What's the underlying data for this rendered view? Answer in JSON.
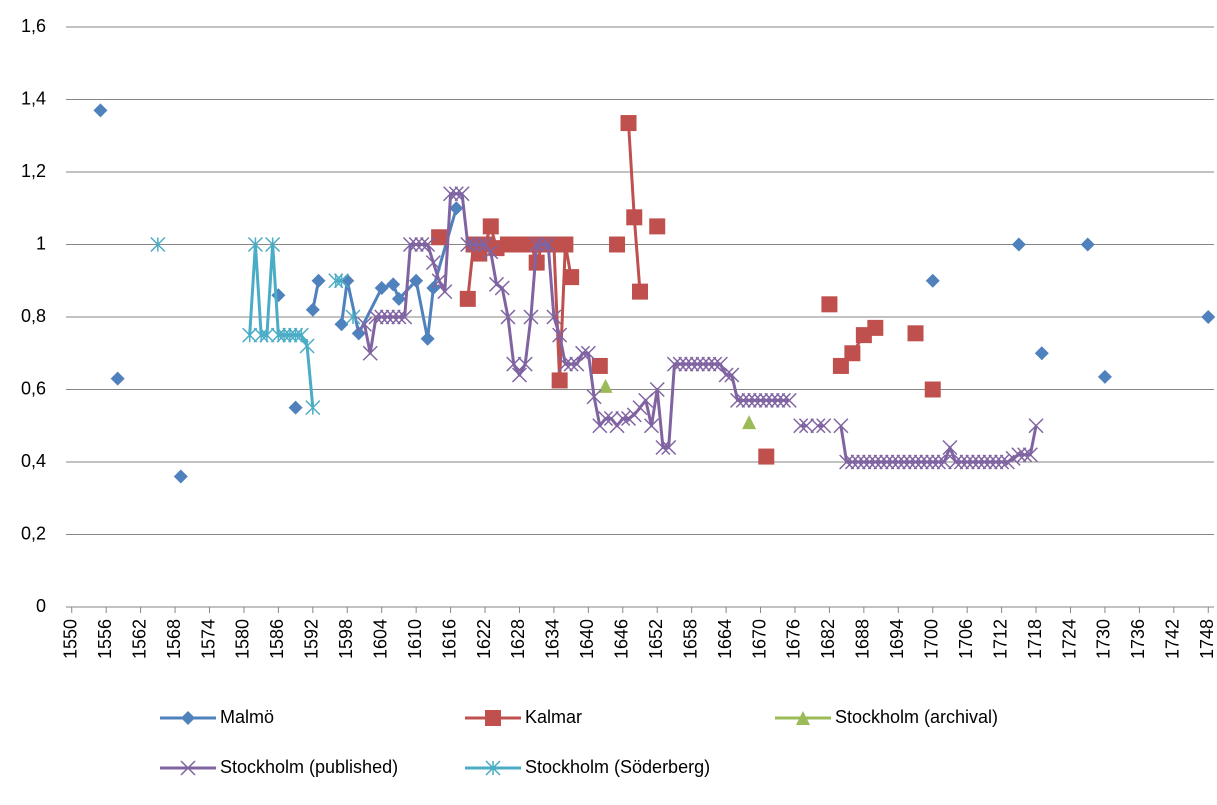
{
  "chart_data": {
    "type": "line",
    "xlim": [
      1549,
      1749
    ],
    "xticks": [
      1550,
      1556,
      1562,
      1568,
      1574,
      1580,
      1586,
      1592,
      1598,
      1604,
      1610,
      1616,
      1622,
      1628,
      1634,
      1640,
      1646,
      1652,
      1658,
      1664,
      1670,
      1676,
      1682,
      1688,
      1694,
      1700,
      1706,
      1712,
      1718,
      1724,
      1730,
      1736,
      1742,
      1748
    ],
    "ylim": [
      0,
      1.6
    ],
    "yticks": [
      0,
      {
        "value": 0.2,
        "label": "0,2"
      },
      {
        "value": 0.4,
        "label": "0,4"
      },
      {
        "value": 0.6,
        "label": "0,6"
      },
      {
        "value": 0.8,
        "label": "0,8"
      },
      1,
      {
        "value": 1.2,
        "label": "1,2"
      },
      {
        "value": 1.4,
        "label": "1,4"
      },
      {
        "value": 1.6,
        "label": "1,6"
      }
    ],
    "grid": true,
    "legend": "bottom",
    "series": [
      {
        "name": "Malmö",
        "color": "#4f81bd",
        "marker": "diamond",
        "x": [
          1555,
          1556,
          1558,
          1559,
          1569,
          1570,
          1586,
          1587,
          1589,
          1590,
          1592,
          1593,
          1594,
          1597,
          1598,
          1600,
          1604,
          1606,
          1607,
          1610,
          1612,
          1613,
          1617,
          1618,
          1700,
          1701,
          1715,
          1716,
          1719,
          1720,
          1727,
          1728,
          1730,
          1731,
          1748
        ],
        "values": [
          1.37,
          null,
          0.63,
          null,
          0.36,
          null,
          0.86,
          null,
          0.55,
          null,
          0.82,
          0.9,
          null,
          0.78,
          0.9,
          0.755,
          0.88,
          0.89,
          0.85,
          0.9,
          0.74,
          0.88,
          1.1,
          null,
          0.9,
          null,
          1.0,
          null,
          0.7,
          null,
          1.0,
          null,
          0.635,
          null,
          0.8
        ]
      },
      {
        "name": "Kalmar",
        "color": "#c0504d",
        "marker": "square",
        "x": [
          1614,
          1615,
          1619,
          1620,
          1621,
          1622,
          1623,
          1624,
          1626,
          1627,
          1629,
          1630,
          1631,
          1632,
          1633,
          1634,
          1635,
          1636,
          1637,
          1638,
          1642,
          1643,
          1645,
          1646,
          1647,
          1648,
          1649,
          1650,
          1652,
          1653,
          1671,
          1672,
          1682,
          1683,
          1684,
          1686,
          1688,
          1690,
          1691,
          1697,
          1698,
          1700
        ],
        "values": [
          1.02,
          null,
          0.85,
          1.0,
          0.975,
          1.0,
          1.05,
          0.99,
          1.0,
          1.0,
          1.0,
          1.0,
          0.95,
          1.0,
          1.0,
          1.0,
          0.625,
          1.0,
          0.91,
          null,
          0.665,
          null,
          1.0,
          null,
          1.335,
          1.075,
          0.87,
          null,
          1.05,
          null,
          0.415,
          null,
          0.835,
          null,
          0.665,
          0.7,
          0.75,
          0.77,
          null,
          0.755,
          null,
          0.6
        ]
      },
      {
        "name": "Stockholm (archival)",
        "color": "#9bbb59",
        "marker": "triangle",
        "x": [
          1643,
          1644,
          1668
        ],
        "values": [
          0.61,
          null,
          0.51
        ]
      },
      {
        "name": "Stockholm (published)",
        "color": "#8064a2",
        "marker": "x",
        "x": [
          1601,
          1602,
          1603,
          1604,
          1605,
          1606,
          1607,
          1608,
          1609,
          1610,
          1611,
          1612,
          1613,
          1614,
          1615,
          1616,
          1617,
          1618,
          1619,
          1620,
          1621,
          1622,
          1623,
          1624,
          1625,
          1626,
          1627,
          1628,
          1629,
          1630,
          1631,
          1632,
          1633,
          1634,
          1635,
          1636,
          1637,
          1638,
          1639,
          1640,
          1641,
          1642,
          1643,
          1644,
          1645,
          1646,
          1647,
          1648,
          1649,
          1650,
          1651,
          1652,
          1653,
          1654,
          1655,
          1656,
          1657,
          1658,
          1659,
          1660,
          1661,
          1662,
          1663,
          1664,
          1665,
          1666,
          1667,
          1668,
          1669,
          1670,
          1671,
          1672,
          1673,
          1674,
          1675,
          1676,
          1677,
          1678,
          1679,
          1680,
          1681,
          1682,
          1683,
          1684,
          1685,
          1686,
          1687,
          1688,
          1689,
          1690,
          1691,
          1692,
          1693,
          1694,
          1695,
          1696,
          1697,
          1698,
          1699,
          1700,
          1701,
          1702,
          1703,
          1704,
          1705,
          1706,
          1707,
          1708,
          1709,
          1710,
          1711,
          1712,
          1713,
          1714,
          1715,
          1716,
          1717,
          1718
        ],
        "values": [
          0.78,
          0.7,
          0.8,
          0.8,
          0.8,
          0.8,
          0.8,
          0.8,
          1.0,
          1.0,
          1.0,
          1.0,
          0.95,
          0.9,
          0.87,
          1.14,
          1.14,
          1.14,
          1.0,
          1.0,
          1.0,
          1.0,
          0.98,
          0.89,
          0.88,
          0.8,
          0.67,
          0.64,
          0.67,
          0.8,
          1.0,
          1.0,
          1.0,
          0.8,
          0.75,
          0.67,
          0.67,
          0.67,
          0.7,
          0.7,
          0.58,
          0.5,
          0.52,
          0.52,
          0.5,
          0.52,
          0.52,
          0.53,
          0.55,
          0.57,
          0.5,
          0.6,
          0.44,
          0.44,
          0.67,
          0.67,
          0.67,
          0.67,
          0.67,
          0.67,
          0.67,
          0.67,
          0.67,
          0.64,
          0.64,
          0.57,
          0.57,
          0.57,
          0.57,
          0.57,
          0.57,
          0.57,
          0.57,
          0.57,
          0.57,
          null,
          0.5,
          0.5,
          null,
          0.5,
          0.5,
          null,
          null,
          0.5,
          0.4,
          0.4,
          0.4,
          0.4,
          0.4,
          0.4,
          0.4,
          0.4,
          0.4,
          0.4,
          0.4,
          0.4,
          0.4,
          0.4,
          0.4,
          0.4,
          0.4,
          0.4,
          0.44,
          0.4,
          0.4,
          0.4,
          0.4,
          0.4,
          0.4,
          0.4,
          0.4,
          0.4,
          0.4,
          0.41,
          0.42,
          0.42,
          0.42,
          0.5
        ]
      },
      {
        "name": "Stockholm (Söderberg)",
        "color": "#4bacc6",
        "marker": "asterisk",
        "x": [
          1565,
          1566,
          1581,
          1582,
          1583,
          1584,
          1585,
          1586,
          1587,
          1588,
          1589,
          1590,
          1591,
          1592,
          1593,
          1596,
          1597,
          1598,
          1599
        ],
        "values": [
          1.0,
          null,
          0.75,
          1.0,
          0.75,
          0.75,
          1.0,
          0.75,
          0.75,
          0.75,
          0.75,
          0.75,
          0.72,
          0.55,
          null,
          0.9,
          0.9,
          null,
          0.8
        ]
      }
    ]
  }
}
